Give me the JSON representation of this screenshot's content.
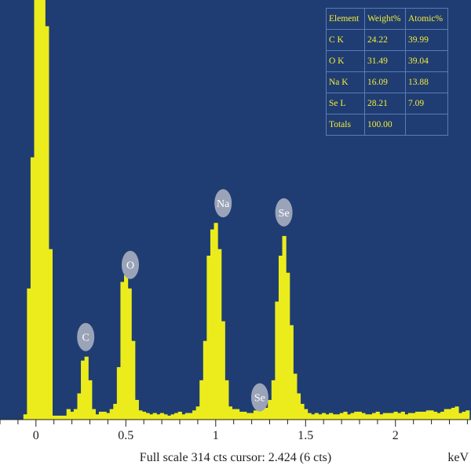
{
  "chart_data": {
    "type": "bar",
    "xlabel": "keV",
    "xlim": [
      -0.2,
      2.42
    ],
    "ylim": [
      0,
      314
    ],
    "x_ticks": [
      "0",
      "0.5",
      "1",
      "1.5",
      "2"
    ],
    "x_tick_values": [
      0,
      0.5,
      1,
      1.5,
      2
    ],
    "footer": "Full scale 314 cts cursor: 2.424 (6 cts)",
    "bin_width": 0.02,
    "spectrum": {
      "x": [
        -0.06,
        -0.04,
        -0.02,
        0.0,
        0.02,
        0.04,
        0.06,
        0.08,
        0.1,
        0.12,
        0.14,
        0.16,
        0.18,
        0.2,
        0.22,
        0.24,
        0.26,
        0.28,
        0.3,
        0.32,
        0.34,
        0.36,
        0.38,
        0.4,
        0.42,
        0.44,
        0.46,
        0.48,
        0.5,
        0.52,
        0.54,
        0.56,
        0.58,
        0.6,
        0.62,
        0.64,
        0.66,
        0.68,
        0.7,
        0.72,
        0.74,
        0.76,
        0.78,
        0.8,
        0.82,
        0.84,
        0.86,
        0.88,
        0.9,
        0.92,
        0.94,
        0.96,
        0.98,
        1.0,
        1.02,
        1.04,
        1.06,
        1.08,
        1.1,
        1.12,
        1.14,
        1.16,
        1.18,
        1.2,
        1.22,
        1.24,
        1.26,
        1.28,
        1.3,
        1.32,
        1.34,
        1.36,
        1.38,
        1.4,
        1.42,
        1.44,
        1.46,
        1.48,
        1.5,
        1.52,
        1.54,
        1.56,
        1.58,
        1.6,
        1.62,
        1.64,
        1.66,
        1.68,
        1.7,
        1.72,
        1.74,
        1.76,
        1.78,
        1.8,
        1.82,
        1.84,
        1.86,
        1.88,
        1.9,
        1.92,
        1.94,
        1.96,
        1.98,
        2.0,
        2.02,
        2.04,
        2.06,
        2.08,
        2.1,
        2.12,
        2.14,
        2.16,
        2.18,
        2.2,
        2.22,
        2.24,
        2.26,
        2.28,
        2.3,
        2.32,
        2.34,
        2.36,
        2.38,
        2.4
      ],
      "counts": [
        4,
        100,
        200,
        325,
        325,
        325,
        300,
        130,
        3,
        3,
        3,
        3,
        8,
        6,
        8,
        20,
        45,
        48,
        30,
        8,
        4,
        6,
        6,
        5,
        8,
        12,
        40,
        105,
        110,
        100,
        60,
        15,
        7,
        6,
        5,
        4,
        5,
        4,
        5,
        4,
        3,
        4,
        5,
        6,
        4,
        5,
        5,
        7,
        10,
        30,
        60,
        125,
        145,
        150,
        130,
        75,
        30,
        10,
        8,
        8,
        6,
        6,
        5,
        5,
        7,
        8,
        8,
        9,
        15,
        30,
        90,
        125,
        140,
        112,
        72,
        35,
        20,
        12,
        8,
        5,
        4,
        5,
        4,
        5,
        4,
        5,
        4,
        4,
        5,
        6,
        4,
        5,
        6,
        6,
        5,
        4,
        4,
        5,
        6,
        4,
        5,
        5,
        5,
        6,
        5,
        6,
        4,
        5,
        5,
        6,
        6,
        6,
        7,
        7,
        6,
        5,
        6,
        8,
        8,
        9,
        10,
        5,
        6,
        7
      ]
    },
    "peak_labels": [
      {
        "label": "C",
        "x": 0.277,
        "counts": 63
      },
      {
        "label": "O",
        "x": 0.525,
        "counts": 118
      },
      {
        "label": "Na",
        "x": 1.041,
        "counts": 165
      },
      {
        "label": "Se",
        "x": 1.379,
        "counts": 158
      },
      {
        "label": "Se",
        "x": 1.245,
        "counts": 17
      }
    ],
    "table": {
      "columns": [
        "Element",
        "Weight%",
        "Atomic%"
      ],
      "rows": [
        [
          "C K",
          "24.22",
          "39.99"
        ],
        [
          "O K",
          "31.49",
          "39.04"
        ],
        [
          "Na K",
          "16.09",
          "13.88"
        ],
        [
          "Se L",
          "28.21",
          "7.09"
        ],
        [
          "Totals",
          "100.00",
          ""
        ]
      ]
    },
    "colors": {
      "background": "#1f3d72",
      "bars": "#ecec1c",
      "text": "#f4ec3a",
      "label_ellipse": "#9aa3b8",
      "grid_lines": "#5a7bb5"
    }
  }
}
